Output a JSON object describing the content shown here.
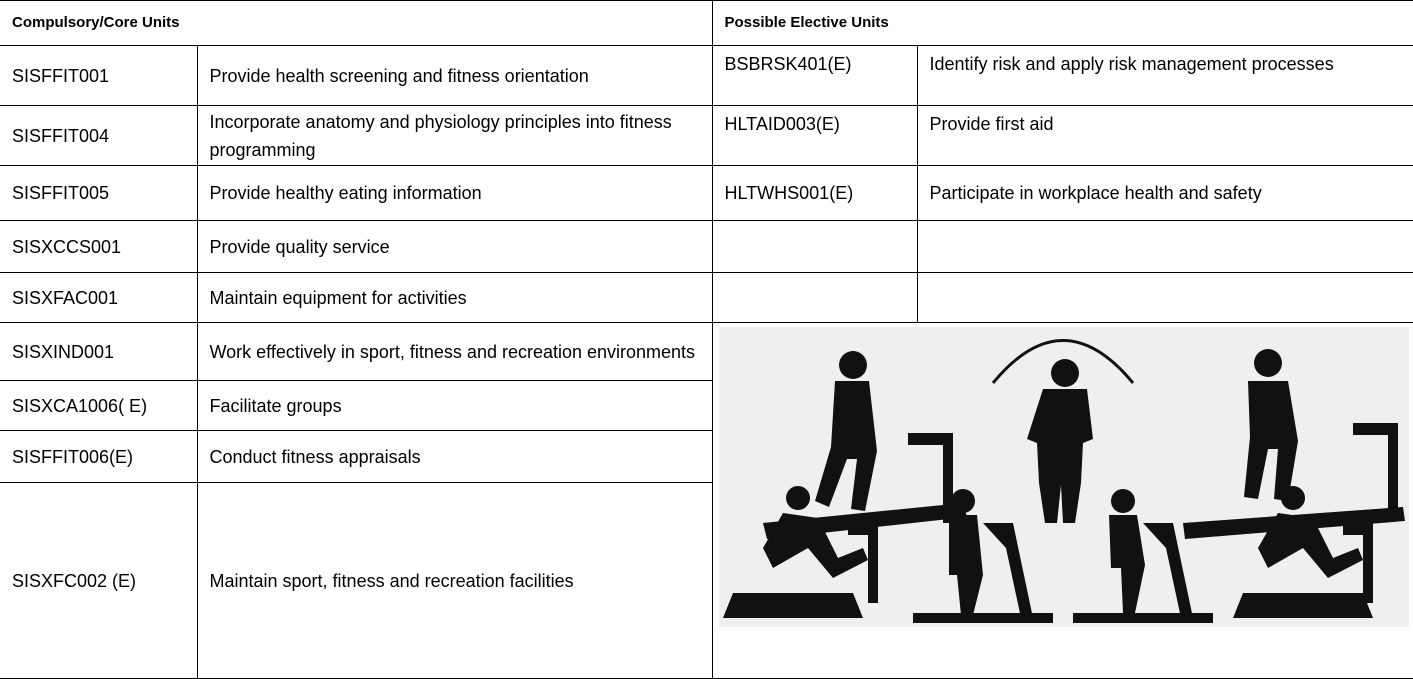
{
  "header": {
    "left": "Compulsory/Core Units",
    "right": "Possible Elective Units"
  },
  "core_units": [
    {
      "code": "SISFFIT001",
      "title": "Provide health screening and fitness orientation"
    },
    {
      "code": "SISFFIT004",
      "title": "Incorporate anatomy and physiology principles into fitness programming"
    },
    {
      "code": "SISFFIT005",
      "title": "Provide healthy eating information"
    },
    {
      "code": "SISXCCS001",
      "title": "Provide quality service"
    },
    {
      "code": "SISXFAC001",
      "title": "Maintain equipment for activities"
    },
    {
      "code": "SISXIND001",
      "title": "Work effectively in sport, fitness and recreation environments"
    },
    {
      "code": "SISXCA1006( E)",
      "title": "Facilitate groups"
    },
    {
      "code": "SISFFIT006(E)",
      "title": "Conduct fitness appraisals"
    },
    {
      "code": "SISXFC002 (E)",
      "title": "Maintain sport, fitness and recreation facilities"
    }
  ],
  "elective_units": [
    {
      "code": "BSBRSK401(E)",
      "title": "Identify risk and apply risk management processes"
    },
    {
      "code": "HLTAID003(E)",
      "title": "Provide first aid"
    },
    {
      "code": "HLTWHS001(E)",
      "title": "Participate in workplace health and safety"
    }
  ]
}
